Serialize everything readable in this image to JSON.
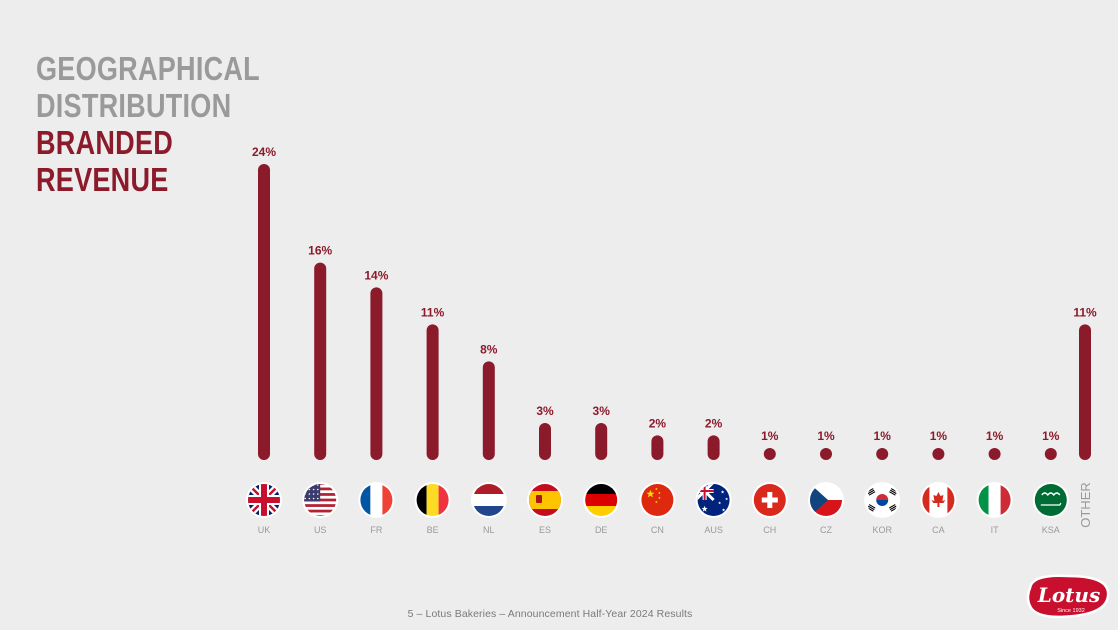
{
  "slide": {
    "title_line1": "GEOGRAPHICAL",
    "title_line2": "DISTRIBUTION",
    "title_line3": "BRANDED",
    "title_line4": "REVENUE",
    "footer": "5 – Lotus Bakeries – Announcement Half-Year 2024 Results",
    "logo_text": "Lotus",
    "logo_tagline": "Since 1932"
  },
  "colors": {
    "bar": "#8b1a2b",
    "title_grey": "#9a9a9a",
    "title_red": "#8b1a2b",
    "label_grey": "#9a9a9a"
  },
  "chart_data": {
    "type": "bar",
    "title": "GEOGRAPHICAL DISTRIBUTION BRANDED REVENUE",
    "xlabel": "",
    "ylabel": "",
    "ylim": [
      0,
      24
    ],
    "categories": [
      "UK",
      "US",
      "FR",
      "BE",
      "NL",
      "ES",
      "DE",
      "CN",
      "AUS",
      "CH",
      "CZ",
      "KOR",
      "CA",
      "IT",
      "KSA",
      "OTHER"
    ],
    "values": [
      24,
      16,
      14,
      11,
      8,
      3,
      3,
      2,
      2,
      1,
      1,
      1,
      1,
      1,
      1,
      11
    ],
    "labels": [
      "24%",
      "16%",
      "14%",
      "11%",
      "8%",
      "3%",
      "3%",
      "2%",
      "2%",
      "1%",
      "1%",
      "1%",
      "1%",
      "1%",
      "1%",
      "11%"
    ],
    "flags": [
      "uk-flag",
      "us-flag",
      "fr-flag",
      "be-flag",
      "nl-flag",
      "es-flag",
      "de-flag",
      "cn-flag",
      "aus-flag",
      "ch-flag",
      "cz-flag",
      "kor-flag",
      "ca-flag",
      "it-flag",
      "ksa-flag",
      ""
    ]
  }
}
